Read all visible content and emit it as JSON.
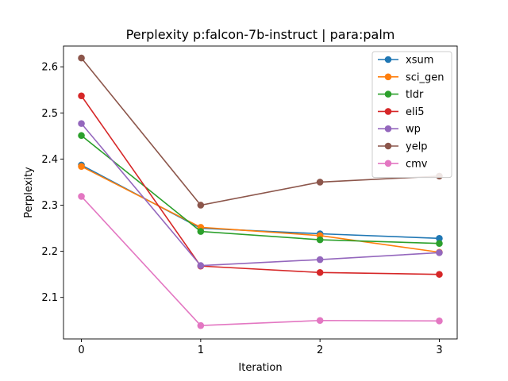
{
  "chart_data": {
    "type": "line",
    "title": "Perplexity p:falcon-7b-instruct | para:palm",
    "xlabel": "Iteration",
    "ylabel": "Perplexity",
    "x": [
      0,
      1,
      2,
      3
    ],
    "xlim": [
      -0.15,
      3.15
    ],
    "ylim": [
      2.01,
      2.645
    ],
    "xticks": [
      0,
      1,
      2,
      3
    ],
    "yticks": [
      2.1,
      2.2,
      2.3,
      2.4,
      2.5,
      2.6
    ],
    "ytick_labels": [
      "2.1",
      "2.2",
      "2.3",
      "2.4",
      "2.5",
      "2.6"
    ],
    "grid": false,
    "legend_position": "top-right",
    "series": [
      {
        "name": "xsum",
        "color": "#1f77b4",
        "values": [
          2.387,
          2.25,
          2.238,
          2.228
        ]
      },
      {
        "name": "sci_gen",
        "color": "#ff7f0e",
        "values": [
          2.384,
          2.252,
          2.234,
          2.198
        ]
      },
      {
        "name": "tldr",
        "color": "#2ca02c",
        "values": [
          2.451,
          2.243,
          2.225,
          2.217
        ]
      },
      {
        "name": "eli5",
        "color": "#d62728",
        "values": [
          2.537,
          2.168,
          2.154,
          2.15
        ]
      },
      {
        "name": "wp",
        "color": "#9467bd",
        "values": [
          2.477,
          2.169,
          2.182,
          2.197
        ]
      },
      {
        "name": "yelp",
        "color": "#8c564b",
        "values": [
          2.619,
          2.3,
          2.35,
          2.363
        ]
      },
      {
        "name": "cmv",
        "color": "#e377c2",
        "values": [
          2.319,
          2.039,
          2.05,
          2.049
        ]
      }
    ]
  }
}
